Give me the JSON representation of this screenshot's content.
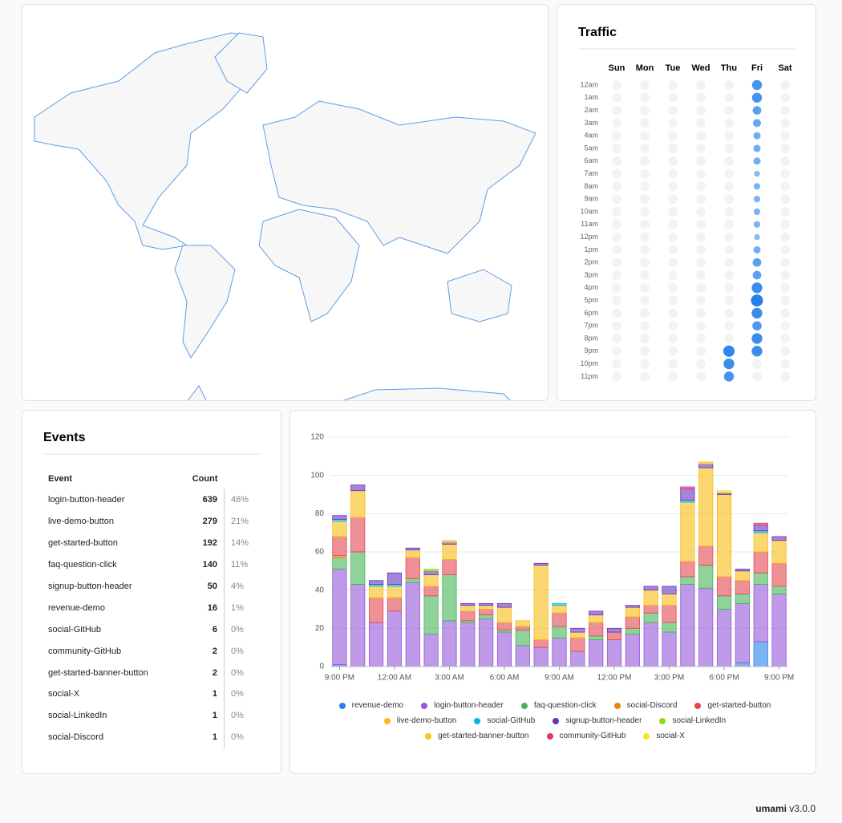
{
  "traffic": {
    "title": "Traffic",
    "days": [
      "Sun",
      "Mon",
      "Tue",
      "Wed",
      "Thu",
      "Fri",
      "Sat"
    ],
    "hours": [
      "12am",
      "1am",
      "2am",
      "3am",
      "4am",
      "5am",
      "6am",
      "7am",
      "8am",
      "9am",
      "10am",
      "11am",
      "12pm",
      "1pm",
      "2pm",
      "3pm",
      "4pm",
      "5pm",
      "6pm",
      "7pm",
      "8pm",
      "9pm",
      "10pm",
      "11pm"
    ],
    "values": [
      [
        0,
        0,
        0,
        0,
        0,
        0,
        0,
        0,
        0,
        0,
        0,
        0,
        0,
        0,
        0,
        0,
        0,
        0,
        0,
        0,
        0,
        0,
        0,
        0
      ],
      [
        0,
        0,
        0,
        0,
        0,
        0,
        0,
        0,
        0,
        0,
        0,
        0,
        0,
        0,
        0,
        0,
        0,
        0,
        0,
        0,
        0,
        0,
        0,
        0
      ],
      [
        0,
        0,
        0,
        0,
        0,
        0,
        0,
        0,
        0,
        0,
        0,
        0,
        0,
        0,
        0,
        0,
        0,
        0,
        0,
        0,
        0,
        0,
        0,
        0
      ],
      [
        0,
        0,
        0,
        0,
        0,
        0,
        0,
        0,
        0,
        0,
        0,
        0,
        0,
        0,
        0,
        0,
        0,
        0,
        0,
        0,
        0,
        0,
        0,
        0
      ],
      [
        0,
        0,
        0,
        0,
        0,
        0,
        0,
        0,
        0,
        0,
        0,
        0,
        0,
        0,
        0,
        0,
        0,
        0,
        0,
        0,
        0,
        12,
        11,
        10
      ],
      [
        10,
        10,
        8,
        7,
        6,
        6,
        6,
        4,
        5,
        5,
        5,
        5,
        4,
        6,
        8,
        8,
        11,
        13,
        11,
        9,
        11,
        11,
        0,
        0
      ],
      [
        0,
        0,
        0,
        0,
        0,
        0,
        0,
        0,
        0,
        0,
        0,
        0,
        0,
        0,
        0,
        0,
        0,
        0,
        0,
        0,
        0,
        0,
        0,
        0
      ]
    ]
  },
  "events": {
    "title": "Events",
    "headers": [
      "Event",
      "Count"
    ],
    "rows": [
      {
        "event": "login-button-header",
        "count": 639,
        "percent": "48%"
      },
      {
        "event": "live-demo-button",
        "count": 279,
        "percent": "21%"
      },
      {
        "event": "get-started-button",
        "count": 192,
        "percent": "14%"
      },
      {
        "event": "faq-question-click",
        "count": 140,
        "percent": "11%"
      },
      {
        "event": "signup-button-header",
        "count": 50,
        "percent": "4%"
      },
      {
        "event": "revenue-demo",
        "count": 16,
        "percent": "1%"
      },
      {
        "event": "social-GitHub",
        "count": 6,
        "percent": "0%"
      },
      {
        "event": "community-GitHub",
        "count": 2,
        "percent": "0%"
      },
      {
        "event": "get-started-banner-button",
        "count": 2,
        "percent": "0%"
      },
      {
        "event": "social-X",
        "count": 1,
        "percent": "0%"
      },
      {
        "event": "social-LinkedIn",
        "count": 1,
        "percent": "0%"
      },
      {
        "event": "social-Discord",
        "count": 1,
        "percent": "0%"
      }
    ]
  },
  "chart_data": {
    "type": "stacked_bar",
    "categories": [
      "9:00 PM",
      null,
      null,
      "12:00 AM",
      null,
      null,
      "3:00 AM",
      null,
      null,
      "6:00 AM",
      null,
      null,
      "9:00 AM",
      null,
      null,
      "12:00 PM",
      null,
      null,
      "3:00 PM",
      null,
      null,
      "6:00 PM",
      null,
      null,
      "9:00 PM"
    ],
    "ylim": [
      0,
      120
    ],
    "yticks": [
      0,
      20,
      40,
      60,
      80,
      100,
      120
    ],
    "grid": true,
    "series": [
      {
        "name": "revenue-demo",
        "color": "#2680eb",
        "values": [
          1,
          0,
          0,
          0,
          0,
          0,
          0,
          0,
          0,
          0,
          0,
          0,
          0,
          0,
          0,
          0,
          0,
          0,
          0,
          0,
          0,
          0,
          2,
          13,
          0
        ]
      },
      {
        "name": "login-button-header",
        "color": "#9256d9",
        "values": [
          50,
          43,
          23,
          29,
          44,
          17,
          24,
          23,
          25,
          18,
          11,
          10,
          15,
          8,
          14,
          14,
          17,
          23,
          18,
          43,
          41,
          30,
          31,
          30,
          38
        ]
      },
      {
        "name": "faq-question-click",
        "color": "#44b556",
        "values": [
          6,
          17,
          0,
          0,
          2,
          20,
          24,
          1,
          2,
          1,
          8,
          0,
          6,
          0,
          2,
          0,
          3,
          5,
          5,
          4,
          12,
          7,
          5,
          6,
          4
        ]
      },
      {
        "name": "social-Discord",
        "color": "#e68619",
        "values": [
          1,
          0,
          0,
          0,
          0,
          0,
          0,
          0,
          0,
          0,
          0,
          0,
          0,
          0,
          0,
          0,
          0,
          0,
          0,
          0,
          0,
          0,
          0,
          0,
          0
        ]
      },
      {
        "name": "get-started-button",
        "color": "#e34850",
        "values": [
          10,
          18,
          13,
          7,
          11,
          5,
          8,
          5,
          3,
          4,
          2,
          4,
          7,
          7,
          7,
          4,
          6,
          4,
          9,
          8,
          10,
          10,
          7,
          11,
          12
        ]
      },
      {
        "name": "live-demo-button",
        "color": "#f7bd12",
        "values": [
          8,
          14,
          6,
          6,
          4,
          6,
          8,
          3,
          2,
          8,
          3,
          39,
          4,
          3,
          4,
          0,
          5,
          8,
          6,
          31,
          41,
          43,
          5,
          10,
          12
        ]
      },
      {
        "name": "social-GitHub",
        "color": "#01bad7",
        "values": [
          1,
          0,
          1,
          1,
          0,
          0,
          0,
          0,
          0,
          0,
          0,
          0,
          1,
          0,
          0,
          0,
          0,
          0,
          0,
          1,
          0,
          0,
          0,
          1,
          0
        ]
      },
      {
        "name": "signup-button-header",
        "color": "#6734bc",
        "values": [
          2,
          3,
          2,
          6,
          1,
          2,
          1,
          1,
          1,
          2,
          0,
          1,
          0,
          2,
          2,
          2,
          1,
          2,
          4,
          6,
          2,
          1,
          1,
          3,
          2
        ]
      },
      {
        "name": "social-LinkedIn",
        "color": "#89de0d",
        "values": [
          0,
          0,
          0,
          0,
          0,
          1,
          0,
          0,
          0,
          0,
          0,
          0,
          0,
          0,
          0,
          0,
          0,
          0,
          0,
          0,
          0,
          0,
          0,
          0,
          0
        ]
      },
      {
        "name": "get-started-banner-button",
        "color": "#f5c518",
        "values": [
          0,
          0,
          0,
          0,
          0,
          0,
          1,
          0,
          0,
          0,
          0,
          0,
          0,
          0,
          0,
          0,
          0,
          0,
          0,
          0,
          1,
          0,
          0,
          0,
          0
        ]
      },
      {
        "name": "community-GitHub",
        "color": "#e0336e",
        "values": [
          0,
          0,
          0,
          0,
          0,
          0,
          0,
          0,
          0,
          0,
          0,
          0,
          0,
          0,
          0,
          0,
          0,
          0,
          0,
          1,
          0,
          0,
          0,
          1,
          0
        ]
      },
      {
        "name": "social-X",
        "color": "#f8e71c",
        "values": [
          0,
          0,
          0,
          0,
          0,
          0,
          0,
          0,
          0,
          0,
          0,
          0,
          0,
          0,
          0,
          0,
          0,
          0,
          0,
          0,
          0,
          1,
          0,
          0,
          0
        ]
      }
    ]
  },
  "footer": {
    "brand": "umami",
    "version": "v3.0.0"
  }
}
